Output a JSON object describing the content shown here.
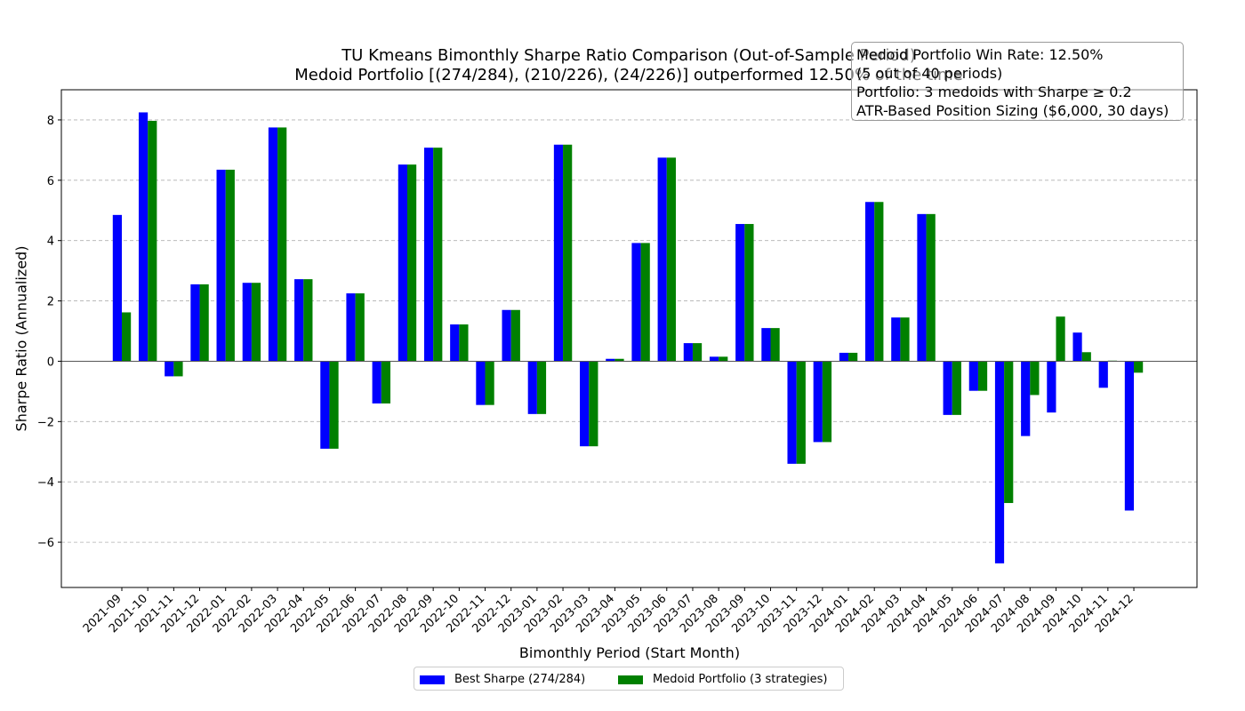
{
  "chart_data": {
    "type": "bar",
    "title": "TU Kmeans Bimonthly Sharpe Ratio Comparison (Out-of-Sample Period)",
    "subtitle": "Medoid Portfolio [(274/284), (210/226), (24/226)] outperformed 12.50% of the time",
    "xlabel": "Bimonthly Period (Start Month)",
    "ylabel": "Sharpe Ratio (Annualized)",
    "ylim": [
      -7.5,
      9.0
    ],
    "yticks": [
      -6,
      -4,
      -2,
      0,
      2,
      4,
      6,
      8
    ],
    "grid": "horizontal dashed",
    "legend_position": "bottom-center",
    "categories": [
      "2021-09",
      "2021-10",
      "2021-11",
      "2021-12",
      "2022-01",
      "2022-02",
      "2022-03",
      "2022-04",
      "2022-05",
      "2022-06",
      "2022-07",
      "2022-08",
      "2022-09",
      "2022-10",
      "2022-11",
      "2022-12",
      "2023-01",
      "2023-02",
      "2023-03",
      "2023-04",
      "2023-05",
      "2023-06",
      "2023-07",
      "2023-08",
      "2023-09",
      "2023-10",
      "2023-11",
      "2023-12",
      "2024-01",
      "2024-02",
      "2024-03",
      "2024-04",
      "2024-05",
      "2024-06",
      "2024-07",
      "2024-08",
      "2024-09",
      "2024-10",
      "2024-11",
      "2024-12"
    ],
    "series": [
      {
        "name": "Best Sharpe (274/284)",
        "color": "#0000ff",
        "values": [
          4.85,
          8.25,
          -0.5,
          2.55,
          6.35,
          2.6,
          7.75,
          2.72,
          -2.9,
          2.25,
          -1.4,
          6.52,
          7.08,
          1.22,
          -1.45,
          1.7,
          -1.75,
          7.18,
          -2.82,
          0.08,
          3.92,
          6.75,
          0.6,
          0.15,
          4.55,
          1.1,
          -3.4,
          -2.68,
          0.28,
          5.28,
          1.45,
          4.88,
          -1.78,
          -0.98,
          -6.7,
          -2.48,
          -1.7,
          0.95,
          -0.88,
          -4.95
        ]
      },
      {
        "name": "Medoid Portfolio (3 strategies)",
        "color": "#008000",
        "values": [
          1.62,
          7.97,
          -0.5,
          2.55,
          6.35,
          2.6,
          7.75,
          2.72,
          -2.9,
          2.25,
          -1.4,
          6.52,
          7.08,
          1.22,
          -1.45,
          1.7,
          -1.75,
          7.18,
          -2.82,
          0.08,
          3.92,
          6.75,
          0.6,
          0.15,
          4.55,
          1.1,
          -3.4,
          -2.68,
          0.28,
          5.28,
          1.45,
          4.88,
          -1.78,
          -0.98,
          -4.7,
          -1.12,
          1.48,
          0.3,
          0.02,
          -0.38
        ]
      }
    ]
  },
  "stats_box": {
    "line1": "Medoid Portfolio Win Rate: 12.50%",
    "line2": "(5 out of 40 periods)",
    "line3": "Portfolio: 3 medoids with Sharpe ≥ 0.2",
    "line4": "ATR-Based Position Sizing ($6,000, 30 days)"
  }
}
